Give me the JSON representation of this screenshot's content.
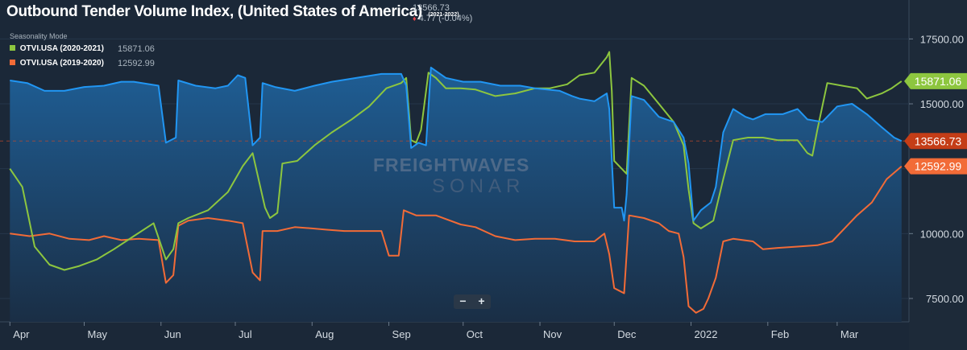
{
  "header": {
    "title": "Outbound Tender Volume Index, (United States of America)",
    "range": "(2021-2022)",
    "last_value": "13566.73",
    "change": "4.77 (-0.04%)",
    "seasonality_label": "Seasonality Mode"
  },
  "legend": [
    {
      "label": "OTVI.USA (2020-2021)",
      "value": "15871.06",
      "color": "#8dc63f"
    },
    {
      "label": "OTVI.USA (2019-2020)",
      "value": "12592.99",
      "color": "#f26b37"
    }
  ],
  "zoom": {
    "minus": "−",
    "plus": "+"
  },
  "watermark": {
    "line1": "FREIGHTWAVES",
    "line2": "SONAR"
  },
  "chart_data": {
    "type": "area",
    "x_axis": {
      "ticks": [
        {
          "label": "Apr",
          "x": 0
        },
        {
          "label": "May",
          "x": 30
        },
        {
          "label": "Jun",
          "x": 61
        },
        {
          "label": "Jul",
          "x": 91
        },
        {
          "label": "Aug",
          "x": 122
        },
        {
          "label": "Sep",
          "x": 153
        },
        {
          "label": "Oct",
          "x": 183
        },
        {
          "label": "Nov",
          "x": 214
        },
        {
          "label": "Dec",
          "x": 244
        },
        {
          "label": "2022",
          "x": 275
        },
        {
          "label": "Feb",
          "x": 306
        },
        {
          "label": "Mar",
          "x": 334
        }
      ],
      "range": [
        -4,
        363
      ]
    },
    "y_axis": {
      "ticks": [
        7500,
        10000,
        12500,
        15000,
        17500
      ],
      "tick_labels": [
        "7500.00",
        "10000.00",
        "",
        "15000.00",
        "17500.00"
      ],
      "range": [
        6600,
        19000
      ],
      "position": "right"
    },
    "grid": "horizontal",
    "current_line": 13566.73,
    "series": [
      {
        "name": "OTVI.USA (2021-2022)",
        "color": "#2196f3",
        "fill": true,
        "badge": "13566.73",
        "badge_color": "#c43d17",
        "points": [
          [
            0,
            15900
          ],
          [
            7,
            15800
          ],
          [
            14,
            15500
          ],
          [
            22,
            15500
          ],
          [
            30,
            15650
          ],
          [
            38,
            15700
          ],
          [
            45,
            15850
          ],
          [
            50,
            15850
          ],
          [
            60,
            15700
          ],
          [
            63,
            13500
          ],
          [
            67,
            13700
          ],
          [
            68,
            15900
          ],
          [
            75,
            15700
          ],
          [
            83,
            15600
          ],
          [
            88,
            15700
          ],
          [
            92,
            16100
          ],
          [
            95,
            16000
          ],
          [
            98,
            13400
          ],
          [
            101,
            13700
          ],
          [
            102,
            15800
          ],
          [
            107,
            15650
          ],
          [
            115,
            15500
          ],
          [
            123,
            15700
          ],
          [
            130,
            15850
          ],
          [
            140,
            16000
          ],
          [
            150,
            16150
          ],
          [
            158,
            16150
          ],
          [
            160,
            15700
          ],
          [
            162,
            13300
          ],
          [
            165,
            13500
          ],
          [
            168,
            13400
          ],
          [
            170,
            16400
          ],
          [
            176,
            16000
          ],
          [
            183,
            15850
          ],
          [
            190,
            15850
          ],
          [
            198,
            15700
          ],
          [
            206,
            15700
          ],
          [
            212,
            15600
          ],
          [
            222,
            15500
          ],
          [
            227,
            15300
          ],
          [
            230,
            15200
          ],
          [
            236,
            15100
          ],
          [
            241,
            15400
          ],
          [
            242,
            14800
          ],
          [
            244,
            11000
          ],
          [
            247,
            11000
          ],
          [
            248,
            10500
          ],
          [
            249,
            11500
          ],
          [
            251,
            15300
          ],
          [
            256,
            15150
          ],
          [
            262,
            14500
          ],
          [
            268,
            14300
          ],
          [
            272,
            13700
          ],
          [
            274,
            12700
          ],
          [
            276,
            10500
          ],
          [
            279,
            10900
          ],
          [
            283,
            11200
          ],
          [
            285,
            11800
          ],
          [
            288,
            13900
          ],
          [
            292,
            14800
          ],
          [
            297,
            14500
          ],
          [
            300,
            14400
          ],
          [
            305,
            14600
          ],
          [
            312,
            14600
          ],
          [
            318,
            14800
          ],
          [
            322,
            14400
          ],
          [
            328,
            14300
          ],
          [
            334,
            14900
          ],
          [
            340,
            15000
          ],
          [
            346,
            14600
          ],
          [
            352,
            14100
          ],
          [
            357,
            13700
          ],
          [
            360,
            13566.73
          ]
        ]
      },
      {
        "name": "OTVI.USA (2020-2021)",
        "color": "#8dc63f",
        "fill": false,
        "badge": "15871.06",
        "badge_color": "#8dc63f",
        "points": [
          [
            0,
            12500
          ],
          [
            5,
            11800
          ],
          [
            10,
            9500
          ],
          [
            16,
            8800
          ],
          [
            22,
            8600
          ],
          [
            28,
            8750
          ],
          [
            35,
            9000
          ],
          [
            42,
            9400
          ],
          [
            50,
            9900
          ],
          [
            58,
            10400
          ],
          [
            63,
            9000
          ],
          [
            66,
            9400
          ],
          [
            68,
            10400
          ],
          [
            72,
            10600
          ],
          [
            80,
            10900
          ],
          [
            88,
            11600
          ],
          [
            94,
            12600
          ],
          [
            98,
            13100
          ],
          [
            103,
            11000
          ],
          [
            105,
            10600
          ],
          [
            108,
            10800
          ],
          [
            110,
            12700
          ],
          [
            116,
            12800
          ],
          [
            123,
            13400
          ],
          [
            130,
            13900
          ],
          [
            138,
            14400
          ],
          [
            145,
            14900
          ],
          [
            152,
            15600
          ],
          [
            158,
            15800
          ],
          [
            160,
            16000
          ],
          [
            162,
            13600
          ],
          [
            164,
            13500
          ],
          [
            166,
            14000
          ],
          [
            169,
            16200
          ],
          [
            172,
            16000
          ],
          [
            176,
            15600
          ],
          [
            182,
            15600
          ],
          [
            188,
            15550
          ],
          [
            196,
            15300
          ],
          [
            204,
            15400
          ],
          [
            212,
            15600
          ],
          [
            218,
            15600
          ],
          [
            225,
            15750
          ],
          [
            230,
            16100
          ],
          [
            236,
            16200
          ],
          [
            241,
            16800
          ],
          [
            242,
            17000
          ],
          [
            243,
            15500
          ],
          [
            244,
            12800
          ],
          [
            247,
            12500
          ],
          [
            249,
            12300
          ],
          [
            251,
            16000
          ],
          [
            256,
            15700
          ],
          [
            262,
            15000
          ],
          [
            268,
            14300
          ],
          [
            272,
            13400
          ],
          [
            274,
            11700
          ],
          [
            276,
            10400
          ],
          [
            279,
            10200
          ],
          [
            284,
            10500
          ],
          [
            288,
            12100
          ],
          [
            292,
            13600
          ],
          [
            298,
            13700
          ],
          [
            304,
            13700
          ],
          [
            310,
            13600
          ],
          [
            318,
            13600
          ],
          [
            322,
            13100
          ],
          [
            324,
            13000
          ],
          [
            326,
            14000
          ],
          [
            330,
            15800
          ],
          [
            336,
            15700
          ],
          [
            342,
            15600
          ],
          [
            346,
            15200
          ],
          [
            352,
            15400
          ],
          [
            356,
            15600
          ],
          [
            360,
            15871.06
          ]
        ]
      },
      {
        "name": "OTVI.USA (2019-2020)",
        "color": "#f26b37",
        "fill": false,
        "badge": "12592.99",
        "badge_color": "#f26b37",
        "points": [
          [
            0,
            10000
          ],
          [
            8,
            9900
          ],
          [
            16,
            10000
          ],
          [
            24,
            9800
          ],
          [
            32,
            9750
          ],
          [
            38,
            9900
          ],
          [
            45,
            9750
          ],
          [
            52,
            9800
          ],
          [
            60,
            9750
          ],
          [
            63,
            8100
          ],
          [
            66,
            8400
          ],
          [
            68,
            10300
          ],
          [
            72,
            10500
          ],
          [
            80,
            10600
          ],
          [
            88,
            10500
          ],
          [
            94,
            10400
          ],
          [
            98,
            8500
          ],
          [
            101,
            8200
          ],
          [
            102,
            10100
          ],
          [
            108,
            10100
          ],
          [
            115,
            10250
          ],
          [
            122,
            10200
          ],
          [
            128,
            10150
          ],
          [
            135,
            10100
          ],
          [
            150,
            10100
          ],
          [
            153,
            9150
          ],
          [
            157,
            9150
          ],
          [
            159,
            10900
          ],
          [
            164,
            10700
          ],
          [
            172,
            10700
          ],
          [
            182,
            10350
          ],
          [
            188,
            10250
          ],
          [
            196,
            9900
          ],
          [
            204,
            9750
          ],
          [
            212,
            9800
          ],
          [
            220,
            9800
          ],
          [
            228,
            9700
          ],
          [
            236,
            9700
          ],
          [
            240,
            10000
          ],
          [
            242,
            9200
          ],
          [
            244,
            7900
          ],
          [
            246,
            7800
          ],
          [
            248,
            7700
          ],
          [
            250,
            10700
          ],
          [
            256,
            10600
          ],
          [
            262,
            10400
          ],
          [
            266,
            10100
          ],
          [
            270,
            10000
          ],
          [
            272,
            9100
          ],
          [
            274,
            7200
          ],
          [
            277,
            6950
          ],
          [
            280,
            7100
          ],
          [
            282,
            7500
          ],
          [
            285,
            8300
          ],
          [
            288,
            9700
          ],
          [
            292,
            9800
          ],
          [
            300,
            9700
          ],
          [
            304,
            9400
          ],
          [
            310,
            9450
          ],
          [
            318,
            9500
          ],
          [
            326,
            9550
          ],
          [
            332,
            9700
          ],
          [
            338,
            10300
          ],
          [
            342,
            10700
          ],
          [
            348,
            11200
          ],
          [
            354,
            12100
          ],
          [
            360,
            12592.99
          ]
        ]
      }
    ]
  }
}
